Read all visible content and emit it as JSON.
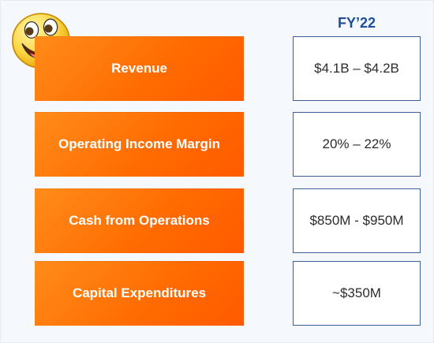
{
  "header": {
    "title": "FY’22"
  },
  "rows": [
    {
      "label": "Revenue",
      "value": "$4.1B – $4.2B"
    },
    {
      "label": "Operating Income Margin",
      "value": "20% – 22%"
    },
    {
      "label": "Cash from Operations",
      "value": "$850M - $950M"
    },
    {
      "label": "Capital Expenditures",
      "value": "~$350M"
    }
  ],
  "icons": {
    "emoji": "laughing-face-icon"
  },
  "colors": {
    "accent_orange": "#ff6a00",
    "header_blue": "#1f4e9a",
    "box_border": "#3d5f96"
  }
}
